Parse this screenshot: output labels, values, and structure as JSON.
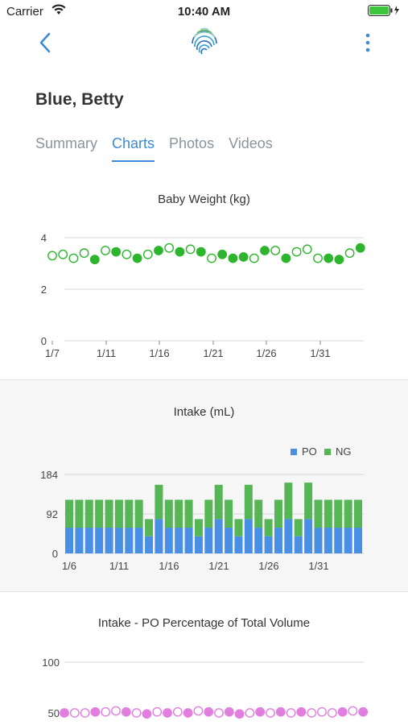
{
  "status": {
    "carrier": "Carrier",
    "time": "10:40 AM"
  },
  "icons": {
    "back": "chevron-left-icon",
    "logo": "fingerprint-logo",
    "more": "vertical-ellipsis-icon",
    "wifi": "wifi-icon",
    "battery": "battery-icon"
  },
  "colors": {
    "accent": "#3c8ad8",
    "weight_green": "#2db52d",
    "po_blue": "#4a8fe6",
    "ng_green": "#56b656",
    "po_pct_pink": "#e27ee0"
  },
  "patient": {
    "name": "Blue, Betty"
  },
  "tabs": [
    {
      "label": "Summary",
      "active": false
    },
    {
      "label": "Charts",
      "active": true
    },
    {
      "label": "Photos",
      "active": false
    },
    {
      "label": "Videos",
      "active": false
    }
  ],
  "chart_data": [
    {
      "type": "scatter",
      "title": "Baby Weight (kg)",
      "x_tick_labels": [
        "1/7",
        "1/11",
        "1/16",
        "1/21",
        "1/26",
        "1/31"
      ],
      "y_tick_labels": [
        "0",
        "2",
        "4"
      ],
      "ylim": [
        0,
        4
      ],
      "grid": true,
      "series": [
        {
          "values": [
            3.3,
            3.35,
            3.2,
            3.4,
            3.15,
            3.5,
            3.45,
            3.35,
            3.2,
            3.35,
            3.5,
            3.6,
            3.45,
            3.55,
            3.45,
            3.2,
            3.35,
            3.2,
            3.25,
            3.2,
            3.5,
            3.5,
            3.2,
            3.45,
            3.55,
            3.2,
            3.2,
            3.15,
            3.4,
            3.6
          ],
          "filled": [
            false,
            false,
            false,
            false,
            true,
            false,
            true,
            false,
            true,
            false,
            true,
            false,
            true,
            false,
            true,
            false,
            true,
            true,
            true,
            false,
            true,
            false,
            true,
            false,
            false,
            false,
            true,
            true,
            false,
            true
          ]
        }
      ]
    },
    {
      "type": "bar",
      "title": "Intake (mL)",
      "legend": [
        "PO",
        "NG"
      ],
      "legend_position": "top-right",
      "x_tick_labels": [
        "1/6",
        "1/11",
        "1/16",
        "1/21",
        "1/26",
        "1/31"
      ],
      "y_tick_labels": [
        "0",
        "92",
        "184"
      ],
      "ylim": [
        0,
        184
      ],
      "stacked": true,
      "series": [
        {
          "name": "PO",
          "values": [
            60,
            60,
            60,
            60,
            60,
            60,
            60,
            60,
            40,
            80,
            60,
            60,
            60,
            40,
            60,
            80,
            60,
            40,
            80,
            60,
            40,
            60,
            80,
            40,
            80,
            60,
            60,
            60,
            60,
            60
          ]
        },
        {
          "name": "NG",
          "values": [
            65,
            65,
            65,
            65,
            65,
            65,
            65,
            65,
            40,
            80,
            65,
            65,
            65,
            40,
            65,
            80,
            65,
            40,
            80,
            65,
            40,
            65,
            85,
            40,
            85,
            65,
            65,
            65,
            65,
            65
          ]
        }
      ]
    },
    {
      "type": "scatter",
      "title": "Intake - PO Percentage of Total Volume",
      "y_tick_labels": [
        "50",
        "100"
      ],
      "ylim": [
        50,
        100
      ],
      "grid": true,
      "series": [
        {
          "values": [
            50,
            50,
            50,
            51,
            51,
            52,
            51,
            50,
            49,
            51,
            50,
            51,
            50,
            52,
            51,
            50,
            51,
            49,
            50,
            51,
            50,
            51,
            50,
            51,
            50,
            51,
            50,
            51,
            52,
            51
          ],
          "filled": [
            true,
            false,
            false,
            true,
            false,
            false,
            true,
            false,
            true,
            false,
            true,
            false,
            true,
            false,
            true,
            false,
            true,
            true,
            false,
            true,
            false,
            true,
            false,
            true,
            false,
            false,
            false,
            true,
            false,
            true
          ]
        }
      ]
    }
  ]
}
